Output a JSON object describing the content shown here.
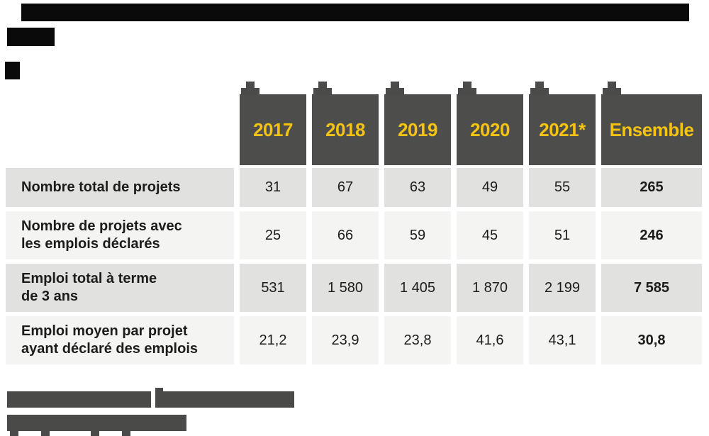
{
  "chart_data": {
    "type": "table",
    "title": "",
    "categories": [
      "2017",
      "2018",
      "2019",
      "2020",
      "2021*",
      "Ensemble"
    ],
    "series": [
      {
        "name": "Nombre total de projets",
        "values": [
          31,
          67,
          63,
          49,
          55,
          265
        ]
      },
      {
        "name": "Nombre de projets avec les emplois déclarés",
        "values": [
          25,
          66,
          59,
          45,
          51,
          246
        ]
      },
      {
        "name": "Emploi total à terme de 3 ans",
        "values": [
          531,
          1580,
          1405,
          1870,
          2199,
          7585
        ]
      },
      {
        "name": "Emploi moyen par projet ayant déclaré des emplois",
        "values": [
          21.2,
          23.9,
          23.8,
          41.6,
          43.1,
          30.8
        ]
      }
    ],
    "layout": "year columns with dark headers, summary column 'Ensemble' in bold, redacted title and source bars"
  },
  "table": {
    "columns": [
      "2017",
      "2018",
      "2019",
      "2020",
      "2021*",
      "Ensemble"
    ],
    "rows": [
      {
        "label_lines": [
          "Nombre total de projets"
        ],
        "values": [
          "31",
          "67",
          "63",
          "49",
          "55",
          "265"
        ]
      },
      {
        "label_lines": [
          "Nombre de projets avec",
          "les emplois déclarés"
        ],
        "values": [
          "25",
          "66",
          "59",
          "45",
          "51",
          "246"
        ]
      },
      {
        "label_lines": [
          "Emploi total à terme",
          "de 3 ans"
        ],
        "values": [
          "531",
          "1 580",
          "1 405",
          "1 870",
          "2 199",
          "7 585"
        ]
      },
      {
        "label_lines": [
          "Emploi moyen par projet",
          "ayant déclaré des emplois"
        ],
        "values": [
          "21,2",
          "23,9",
          "23,8",
          "41,6",
          "43,1",
          "30,8"
        ]
      }
    ]
  },
  "colors": {
    "header_gray": "#4D4D4C",
    "accent_yellow": "#F5C411",
    "row_dark": "#E1E1E0",
    "row_light": "#F4F4F3",
    "redaction_black": "#0A0A0A",
    "redaction_gray": "#4A4A49",
    "text": "#1C1C1A"
  }
}
